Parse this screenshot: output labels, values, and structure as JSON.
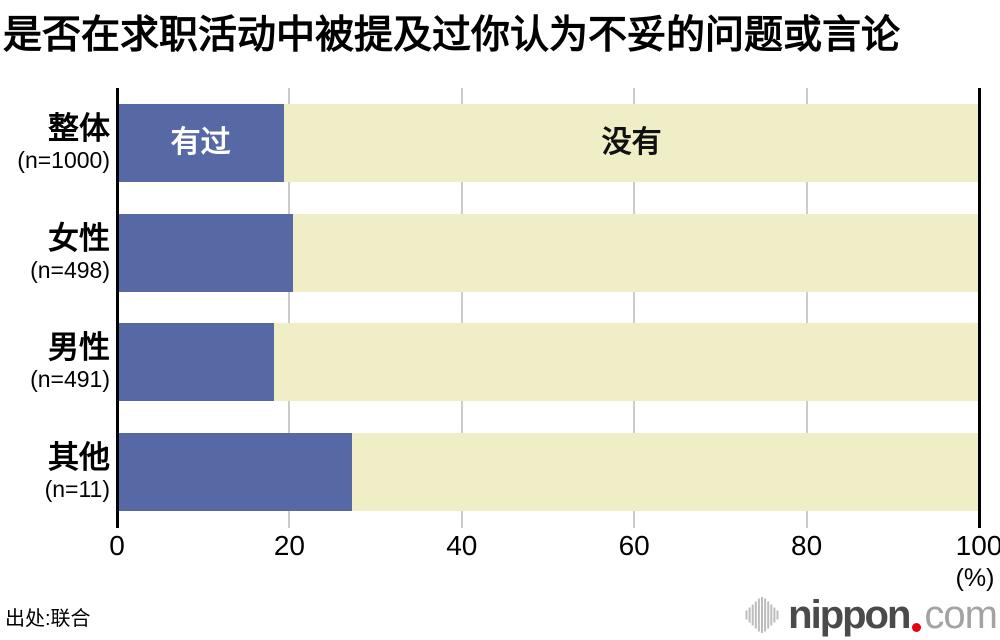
{
  "title": "是否在求职活动中被提及过你认为不妥的问题或言论",
  "source": "出处:联合",
  "logo": {
    "name": "nippon",
    "tld": "com",
    "icon": "soundwave-bars-icon",
    "dot_color": "#e60012"
  },
  "chart_data": {
    "type": "bar",
    "orientation": "horizontal",
    "stacked": true,
    "title": "是否在求职活动中被提及过你认为不妥的问题或言论",
    "categories": [
      {
        "label": "整体",
        "n": "(n=1000)"
      },
      {
        "label": "女性",
        "n": "(n=498)"
      },
      {
        "label": "男性",
        "n": "(n=491)"
      },
      {
        "label": "其他",
        "n": "(n=11)"
      }
    ],
    "series": [
      {
        "name": "有过",
        "color": "#5669a4",
        "text_color": "#ffffff",
        "values": [
          19.4,
          20.4,
          18.2,
          27.3
        ]
      },
      {
        "name": "没有",
        "color": "#f0eec6",
        "text_color": "#111111",
        "values": [
          80.6,
          79.6,
          81.8,
          72.7
        ]
      }
    ],
    "xlim": [
      0,
      100
    ],
    "xticks": [
      0,
      20,
      40,
      60,
      80,
      100
    ],
    "x_unit_label": "(%)",
    "xlabel": "",
    "ylabel": "",
    "grid_color": "#cccccc",
    "axis_color": "#000000",
    "legend_position": "labels-inside-first-bar"
  }
}
